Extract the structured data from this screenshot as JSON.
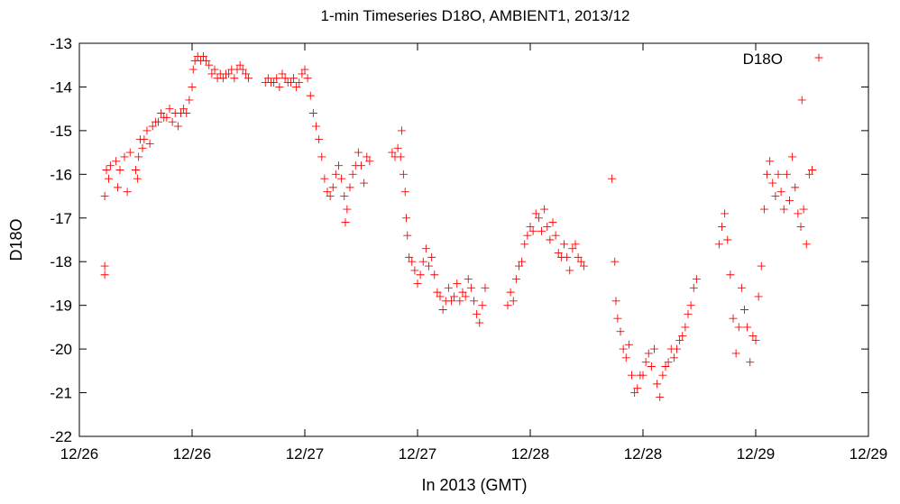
{
  "chart_data": {
    "type": "scatter",
    "title": "1-min Timeseries D18O, AMBIENT1, 2013/12",
    "xlabel": "In 2013 (GMT)",
    "ylabel": "D18O",
    "xlim": [
      0,
      14
    ],
    "ylim": [
      -22,
      -13
    ],
    "x_ticks": [
      {
        "value": 0,
        "label": "12/26"
      },
      {
        "value": 2,
        "label": "12/26"
      },
      {
        "value": 4,
        "label": "12/27"
      },
      {
        "value": 6,
        "label": "12/27"
      },
      {
        "value": 8,
        "label": "12/28"
      },
      {
        "value": 10,
        "label": "12/28"
      },
      {
        "value": 12,
        "label": "12/29"
      },
      {
        "value": 14,
        "label": "12/29"
      }
    ],
    "y_ticks": [
      -13,
      -14,
      -15,
      -16,
      -17,
      -18,
      -19,
      -20,
      -21,
      -22
    ],
    "grid": false,
    "legend": {
      "position": "top-right"
    },
    "colors": {
      "series": "#ff0000"
    },
    "series": [
      {
        "name": "D18O",
        "marker": "plus",
        "points": [
          [
            0.45,
            -16.5
          ],
          [
            0.45,
            -18.1
          ],
          [
            0.45,
            -18.3
          ],
          [
            0.48,
            -15.9
          ],
          [
            0.52,
            -16.1
          ],
          [
            0.55,
            -15.8
          ],
          [
            0.65,
            -15.7
          ],
          [
            0.68,
            -16.3
          ],
          [
            0.72,
            -15.9
          ],
          [
            0.8,
            -15.6
          ],
          [
            0.85,
            -16.4
          ],
          [
            0.9,
            -15.5
          ],
          [
            1.0,
            -15.9
          ],
          [
            1.03,
            -16.1
          ],
          [
            1.05,
            -15.6
          ],
          [
            1.08,
            -15.2
          ],
          [
            1.12,
            -15.4
          ],
          [
            1.15,
            -15.2
          ],
          [
            1.2,
            -15.0
          ],
          [
            1.25,
            -15.3
          ],
          [
            1.3,
            -14.9
          ],
          [
            1.35,
            -14.8
          ],
          [
            1.4,
            -14.8
          ],
          [
            1.45,
            -14.6
          ],
          [
            1.5,
            -14.7
          ],
          [
            1.55,
            -14.7
          ],
          [
            1.6,
            -14.5
          ],
          [
            1.65,
            -14.8
          ],
          [
            1.7,
            -14.6
          ],
          [
            1.75,
            -14.9
          ],
          [
            1.8,
            -14.6
          ],
          [
            1.85,
            -14.5
          ],
          [
            1.9,
            -14.6
          ],
          [
            1.95,
            -14.3
          ],
          [
            2.0,
            -14.0
          ],
          [
            2.02,
            -13.6
          ],
          [
            2.05,
            -13.4
          ],
          [
            2.1,
            -13.3
          ],
          [
            2.15,
            -13.4
          ],
          [
            2.2,
            -13.3
          ],
          [
            2.25,
            -13.4
          ],
          [
            2.3,
            -13.5
          ],
          [
            2.35,
            -13.7
          ],
          [
            2.4,
            -13.6
          ],
          [
            2.45,
            -13.8
          ],
          [
            2.5,
            -13.7
          ],
          [
            2.55,
            -13.8
          ],
          [
            2.6,
            -13.7
          ],
          [
            2.65,
            -13.7
          ],
          [
            2.7,
            -13.6
          ],
          [
            2.75,
            -13.8
          ],
          [
            2.8,
            -13.6
          ],
          [
            2.85,
            -13.5
          ],
          [
            2.9,
            -13.6
          ],
          [
            2.95,
            -13.7
          ],
          [
            3.0,
            -13.8
          ],
          [
            3.3,
            -13.9
          ],
          [
            3.35,
            -13.8
          ],
          [
            3.4,
            -13.9
          ],
          [
            3.45,
            -13.9
          ],
          [
            3.5,
            -13.8
          ],
          [
            3.55,
            -14.0
          ],
          [
            3.6,
            -13.7
          ],
          [
            3.65,
            -13.8
          ],
          [
            3.7,
            -13.9
          ],
          [
            3.75,
            -13.9
          ],
          [
            3.8,
            -13.8
          ],
          [
            3.85,
            -14.0
          ],
          [
            3.9,
            -13.9
          ],
          [
            3.95,
            -13.7
          ],
          [
            4.0,
            -13.6
          ],
          [
            4.05,
            -13.8
          ],
          [
            4.1,
            -14.2
          ],
          [
            4.15,
            -14.6
          ],
          [
            4.2,
            -14.9
          ],
          [
            4.25,
            -15.2
          ],
          [
            4.3,
            -15.6
          ],
          [
            4.35,
            -16.1
          ],
          [
            4.4,
            -16.4
          ],
          [
            4.45,
            -16.5
          ],
          [
            4.5,
            -16.3
          ],
          [
            4.55,
            -16.0
          ],
          [
            4.6,
            -15.8
          ],
          [
            4.65,
            -16.1
          ],
          [
            4.7,
            -16.5
          ],
          [
            4.72,
            -17.1
          ],
          [
            4.75,
            -16.8
          ],
          [
            4.8,
            -16.3
          ],
          [
            4.85,
            -16.0
          ],
          [
            4.9,
            -15.8
          ],
          [
            4.95,
            -15.5
          ],
          [
            5.0,
            -15.8
          ],
          [
            5.05,
            -16.2
          ],
          [
            5.1,
            -15.6
          ],
          [
            5.15,
            -15.7
          ],
          [
            5.55,
            -15.5
          ],
          [
            5.6,
            -15.6
          ],
          [
            5.65,
            -15.4
          ],
          [
            5.7,
            -15.6
          ],
          [
            5.72,
            -15.0
          ],
          [
            5.75,
            -16.0
          ],
          [
            5.78,
            -16.4
          ],
          [
            5.8,
            -17.0
          ],
          [
            5.82,
            -17.4
          ],
          [
            5.85,
            -17.9
          ],
          [
            5.9,
            -18.0
          ],
          [
            5.95,
            -18.2
          ],
          [
            6.0,
            -18.5
          ],
          [
            6.05,
            -18.3
          ],
          [
            6.1,
            -18.0
          ],
          [
            6.15,
            -17.7
          ],
          [
            6.2,
            -18.1
          ],
          [
            6.25,
            -17.9
          ],
          [
            6.3,
            -18.3
          ],
          [
            6.35,
            -18.7
          ],
          [
            6.4,
            -18.8
          ],
          [
            6.45,
            -19.1
          ],
          [
            6.5,
            -18.9
          ],
          [
            6.55,
            -18.6
          ],
          [
            6.6,
            -18.9
          ],
          [
            6.65,
            -18.8
          ],
          [
            6.7,
            -18.5
          ],
          [
            6.75,
            -18.9
          ],
          [
            6.8,
            -18.7
          ],
          [
            6.85,
            -18.8
          ],
          [
            6.9,
            -18.4
          ],
          [
            6.95,
            -18.6
          ],
          [
            7.0,
            -18.9
          ],
          [
            7.05,
            -19.2
          ],
          [
            7.1,
            -19.4
          ],
          [
            7.15,
            -19.0
          ],
          [
            7.2,
            -18.6
          ],
          [
            7.6,
            -19.0
          ],
          [
            7.65,
            -18.7
          ],
          [
            7.7,
            -18.9
          ],
          [
            7.75,
            -18.4
          ],
          [
            7.8,
            -18.1
          ],
          [
            7.85,
            -18.0
          ],
          [
            7.9,
            -17.6
          ],
          [
            7.95,
            -17.4
          ],
          [
            8.0,
            -17.2
          ],
          [
            8.05,
            -17.3
          ],
          [
            8.1,
            -16.9
          ],
          [
            8.15,
            -17.0
          ],
          [
            8.2,
            -17.3
          ],
          [
            8.25,
            -16.8
          ],
          [
            8.3,
            -17.2
          ],
          [
            8.35,
            -17.5
          ],
          [
            8.4,
            -17.1
          ],
          [
            8.45,
            -17.4
          ],
          [
            8.5,
            -17.8
          ],
          [
            8.55,
            -17.9
          ],
          [
            8.6,
            -17.6
          ],
          [
            8.65,
            -17.9
          ],
          [
            8.7,
            -18.2
          ],
          [
            8.75,
            -17.7
          ],
          [
            8.8,
            -17.6
          ],
          [
            8.85,
            -17.9
          ],
          [
            8.9,
            -18.0
          ],
          [
            8.95,
            -18.1
          ],
          [
            9.45,
            -16.1
          ],
          [
            9.5,
            -18.0
          ],
          [
            9.52,
            -18.9
          ],
          [
            9.55,
            -19.3
          ],
          [
            9.6,
            -19.6
          ],
          [
            9.65,
            -20.0
          ],
          [
            9.7,
            -20.2
          ],
          [
            9.75,
            -19.9
          ],
          [
            9.8,
            -20.6
          ],
          [
            9.85,
            -21.0
          ],
          [
            9.9,
            -20.9
          ],
          [
            9.95,
            -20.6
          ],
          [
            10.0,
            -20.6
          ],
          [
            10.05,
            -20.3
          ],
          [
            10.1,
            -20.1
          ],
          [
            10.15,
            -20.4
          ],
          [
            10.2,
            -20.0
          ],
          [
            10.25,
            -20.8
          ],
          [
            10.3,
            -21.1
          ],
          [
            10.35,
            -20.6
          ],
          [
            10.4,
            -20.4
          ],
          [
            10.45,
            -20.3
          ],
          [
            10.5,
            -20.0
          ],
          [
            10.55,
            -20.2
          ],
          [
            10.6,
            -20.0
          ],
          [
            10.65,
            -19.8
          ],
          [
            10.7,
            -19.7
          ],
          [
            10.75,
            -19.5
          ],
          [
            10.8,
            -19.2
          ],
          [
            10.85,
            -19.0
          ],
          [
            10.9,
            -18.6
          ],
          [
            10.95,
            -18.4
          ],
          [
            11.35,
            -17.6
          ],
          [
            11.4,
            -17.2
          ],
          [
            11.45,
            -16.9
          ],
          [
            11.5,
            -17.5
          ],
          [
            11.55,
            -18.3
          ],
          [
            11.6,
            -19.3
          ],
          [
            11.65,
            -20.1
          ],
          [
            11.7,
            -19.5
          ],
          [
            11.75,
            -18.6
          ],
          [
            11.8,
            -19.1
          ],
          [
            11.85,
            -19.5
          ],
          [
            11.9,
            -20.3
          ],
          [
            11.95,
            -19.7
          ],
          [
            12.0,
            -19.8
          ],
          [
            12.05,
            -18.8
          ],
          [
            12.1,
            -18.1
          ],
          [
            12.15,
            -16.8
          ],
          [
            12.2,
            -16.0
          ],
          [
            12.25,
            -15.7
          ],
          [
            12.3,
            -16.2
          ],
          [
            12.35,
            -16.5
          ],
          [
            12.4,
            -16.0
          ],
          [
            12.45,
            -16.4
          ],
          [
            12.5,
            -16.8
          ],
          [
            12.55,
            -16.0
          ],
          [
            12.6,
            -16.6
          ],
          [
            12.65,
            -15.6
          ],
          [
            12.7,
            -16.3
          ],
          [
            12.75,
            -16.9
          ],
          [
            12.8,
            -17.2
          ],
          [
            12.82,
            -14.3
          ],
          [
            12.85,
            -16.8
          ],
          [
            12.9,
            -17.6
          ],
          [
            12.95,
            -16.0
          ],
          [
            13.0,
            -15.9
          ]
        ]
      }
    ]
  }
}
